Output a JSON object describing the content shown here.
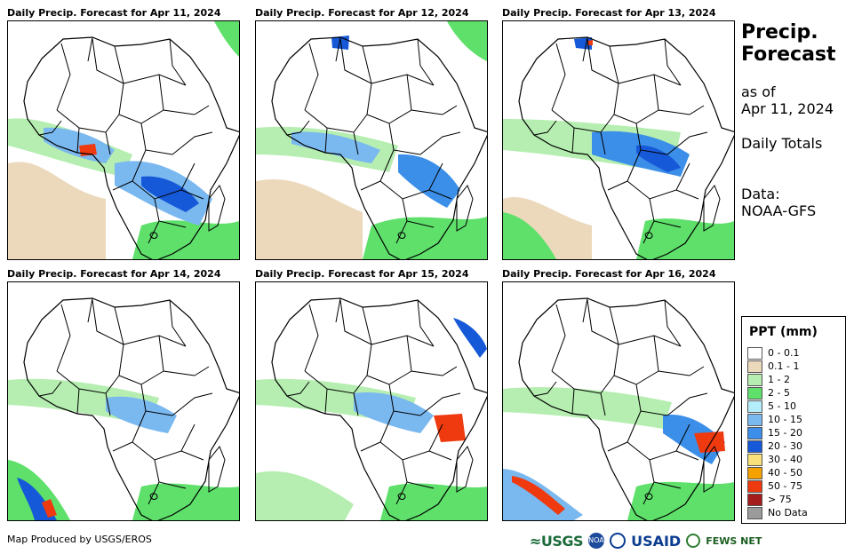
{
  "panels": [
    {
      "title": "Daily Precip. Forecast for Apr 11, 2024"
    },
    {
      "title": "Daily Precip. Forecast for Apr 12, 2024"
    },
    {
      "title": "Daily Precip. Forecast for Apr 13, 2024"
    },
    {
      "title": "Daily Precip. Forecast for Apr 14, 2024"
    },
    {
      "title": "Daily Precip. Forecast for Apr 15, 2024"
    },
    {
      "title": "Daily Precip. Forecast for Apr 16, 2024"
    }
  ],
  "side": {
    "title_line1": "Precip.",
    "title_line2": "Forecast",
    "asof_line1": "as of",
    "asof_line2": "Apr 11, 2024",
    "totals": "Daily Totals",
    "data_line1": "Data:",
    "data_line2": "NOAA-GFS"
  },
  "legend": {
    "title": "PPT (mm)",
    "items": [
      {
        "label": "0 - 0.1",
        "color": "#ffffff"
      },
      {
        "label": "0.1 - 1",
        "color": "#ecd9bc"
      },
      {
        "label": "1 - 2",
        "color": "#b5eeb0"
      },
      {
        "label": "2 - 5",
        "color": "#5ee06b"
      },
      {
        "label": "5 - 10",
        "color": "#b3eefa"
      },
      {
        "label": "10 - 15",
        "color": "#7ab8f0"
      },
      {
        "label": "15 - 20",
        "color": "#3c8fe8"
      },
      {
        "label": "20 - 30",
        "color": "#1659d8"
      },
      {
        "label": "30 - 40",
        "color": "#f9e07a"
      },
      {
        "label": "40 - 50",
        "color": "#f5a200"
      },
      {
        "label": "50 - 75",
        "color": "#ef3a10"
      },
      {
        "label": "> 75",
        "color": "#a51c1c"
      },
      {
        "label": "No Data",
        "color": "#9b9b9b"
      }
    ]
  },
  "footer": {
    "credit": "Map Produced by USGS/EROS",
    "logo_usgs": "≈USGS",
    "logo_noaa": "NOAA",
    "logo_usaid": "USAID",
    "logo_fews": "FEWS NET"
  }
}
